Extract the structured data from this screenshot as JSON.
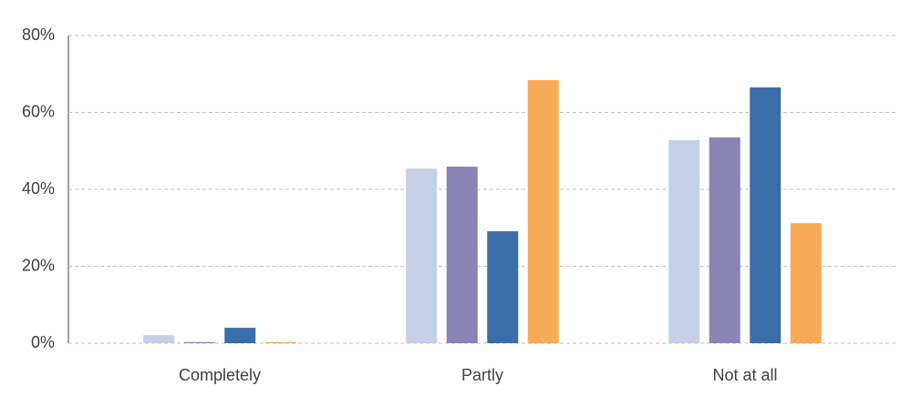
{
  "chart_data": {
    "type": "bar",
    "categories": [
      "Completely",
      "Partly",
      "Not at all"
    ],
    "series": [
      {
        "color": "#c5cfe6",
        "values": [
          2.1,
          45.4,
          52.8
        ]
      },
      {
        "color": "#8a84b4",
        "values": [
          0.3,
          45.9,
          53.5
        ]
      },
      {
        "color": "#3a6ea9",
        "values": [
          4.0,
          29.1,
          66.5
        ]
      },
      {
        "color": "#f7ab56",
        "values": [
          0.3,
          68.4,
          31.2
        ]
      }
    ],
    "ylim": [
      0,
      80
    ],
    "yticks": [
      {
        "value": 0,
        "label": "0%"
      },
      {
        "value": 20,
        "label": "20%"
      },
      {
        "value": 40,
        "label": "40%"
      },
      {
        "value": 60,
        "label": "60%"
      },
      {
        "value": 80,
        "label": "80%"
      }
    ],
    "grid": true
  }
}
